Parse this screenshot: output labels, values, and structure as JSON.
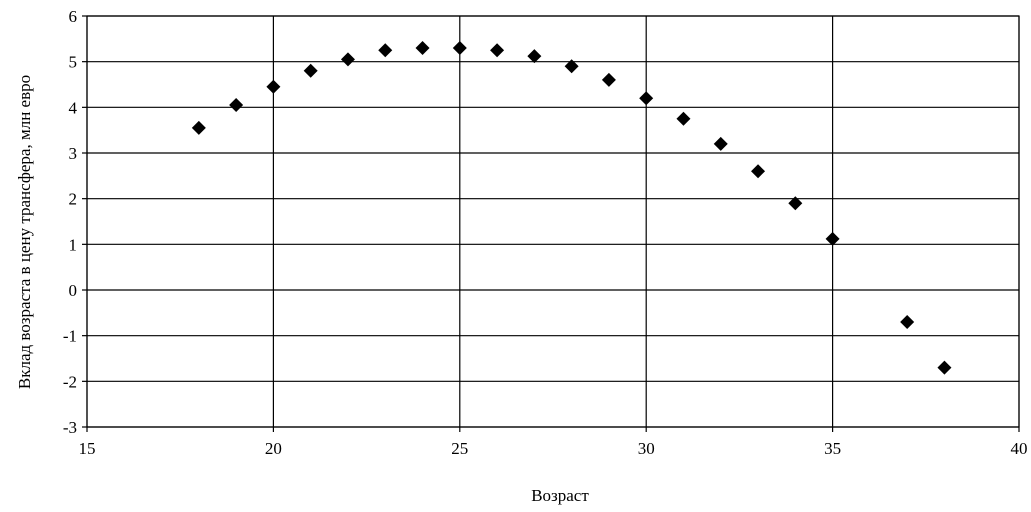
{
  "chart_data": {
    "type": "scatter",
    "title": "",
    "xlabel": "Возраст",
    "ylabel": "Вклад возраста в цену трансфера, млн евро",
    "xlim": [
      15,
      40
    ],
    "ylim": [
      -3,
      6
    ],
    "x_ticks": [
      15,
      20,
      25,
      30,
      35,
      40
    ],
    "y_ticks": [
      -3,
      -2,
      -1,
      0,
      1,
      2,
      3,
      4,
      5,
      6
    ],
    "grid": true,
    "legend": "none",
    "marker": "diamond",
    "marker_color": "#000000",
    "series": [
      {
        "x": [
          18,
          19,
          20,
          21,
          22,
          23,
          24,
          25,
          26,
          27,
          28,
          29,
          30,
          31,
          32,
          33,
          34,
          35,
          37,
          38
        ],
        "y": [
          3.55,
          4.05,
          4.45,
          4.8,
          5.05,
          5.25,
          5.3,
          5.3,
          5.25,
          5.12,
          4.9,
          4.6,
          4.2,
          3.75,
          3.2,
          2.6,
          1.9,
          1.12,
          -0.7,
          -1.7
        ]
      }
    ]
  }
}
